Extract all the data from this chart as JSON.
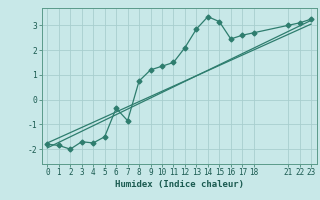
{
  "xlabel": "Humidex (Indice chaleur)",
  "bg_color": "#c8e8e8",
  "grid_color": "#a8cece",
  "line_color": "#2e7d6e",
  "xlim": [
    -0.5,
    23.5
  ],
  "ylim": [
    -2.6,
    3.7
  ],
  "curve_x": [
    0,
    1,
    2,
    3,
    4,
    5,
    6,
    7,
    8,
    9,
    10,
    11,
    12,
    13,
    14,
    15,
    16,
    17,
    18,
    21,
    22,
    23
  ],
  "curve_y": [
    -1.8,
    -1.85,
    -2.0,
    -1.7,
    -1.75,
    -1.5,
    -0.35,
    -0.85,
    0.75,
    1.2,
    1.35,
    1.5,
    2.1,
    2.85,
    3.35,
    3.15,
    2.45,
    2.6,
    2.7,
    3.0,
    3.1,
    3.25
  ],
  "line1_x": [
    0,
    23
  ],
  "line1_y": [
    -1.95,
    3.2
  ],
  "line2_x": [
    0,
    23
  ],
  "line2_y": [
    -1.75,
    3.05
  ],
  "xticks": [
    0,
    1,
    2,
    3,
    4,
    5,
    6,
    7,
    8,
    9,
    10,
    11,
    12,
    13,
    14,
    15,
    16,
    17,
    18,
    21,
    22,
    23
  ],
  "yticks": [
    -2,
    -1,
    0,
    1,
    2,
    3
  ],
  "tick_fontsize": 5.5,
  "xlabel_fontsize": 6.5
}
